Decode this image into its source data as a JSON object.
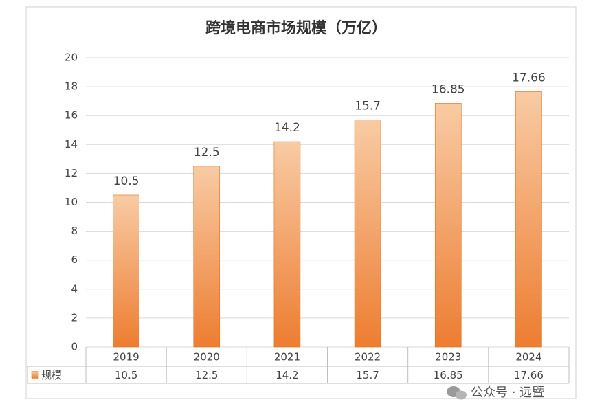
{
  "chart_data": {
    "type": "bar",
    "title": "跨境电商市场规模（万亿）",
    "categories": [
      "2019",
      "2020",
      "2021",
      "2022",
      "2023",
      "2024"
    ],
    "series": [
      {
        "name": "规模",
        "color": "#ed7d31",
        "values": [
          10.5,
          12.5,
          14.2,
          15.7,
          16.85,
          17.66
        ]
      }
    ],
    "ylim": [
      0,
      20
    ],
    "yticks": [
      0,
      2,
      4,
      6,
      8,
      10,
      12,
      14,
      16,
      18,
      20
    ],
    "grid": true,
    "data_table": true
  },
  "watermark": "公众号 · 远暨"
}
